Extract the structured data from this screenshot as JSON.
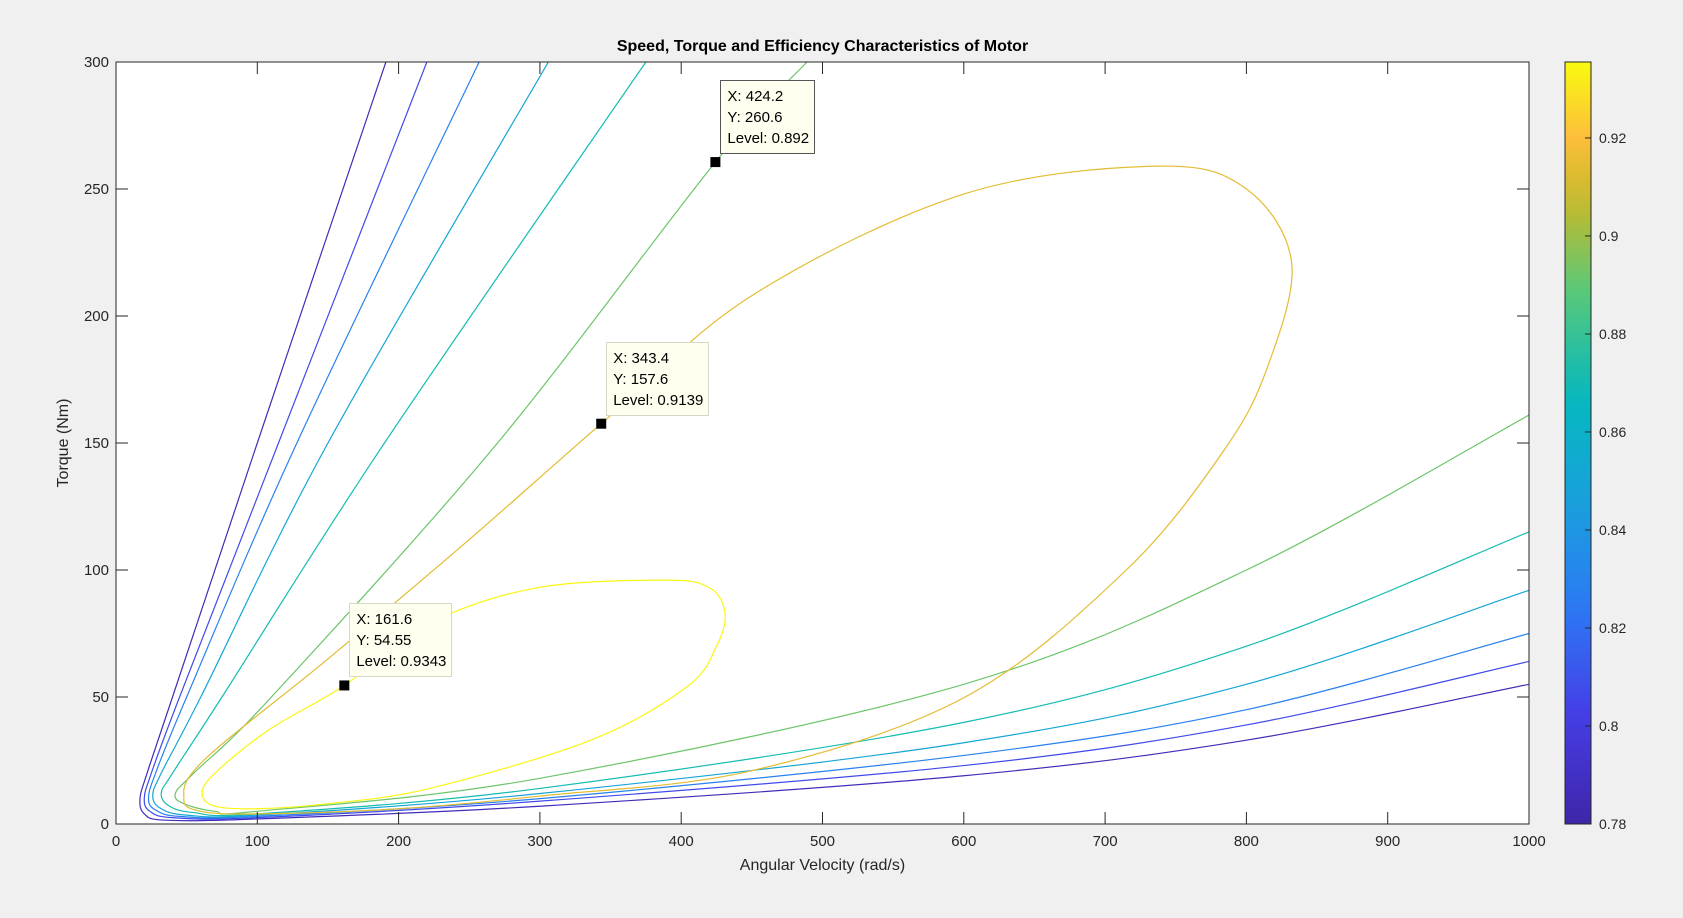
{
  "chart_data": {
    "type": "contour",
    "title": "Speed, Torque and Efficiency Characteristics of Motor",
    "xlabel": "Angular Velocity (rad/s)",
    "ylabel": "Torque (Nm)",
    "xlim": [
      0,
      1000
    ],
    "ylim": [
      0,
      300
    ],
    "xticks": [
      "0",
      "100",
      "200",
      "300",
      "400",
      "500",
      "600",
      "700",
      "800",
      "900",
      "1000"
    ],
    "yticks": [
      "0",
      "50",
      "100",
      "150",
      "200",
      "250",
      "300"
    ],
    "grid": false,
    "colormap": "parula",
    "colorbar": {
      "range": [
        0.78,
        0.9355
      ],
      "ticks": [
        "0.78",
        "0.8",
        "0.82",
        "0.84",
        "0.86",
        "0.88",
        "0.9",
        "0.92"
      ],
      "placement": "right"
    },
    "contours": [
      {
        "level": 0.7855,
        "points": [
          [
            191,
            300
          ],
          [
            100,
            150
          ],
          [
            40,
            50
          ],
          [
            22,
            20
          ],
          [
            17,
            10
          ],
          [
            20,
            4
          ],
          [
            35,
            1.5
          ],
          [
            100,
            2
          ],
          [
            300,
            7
          ],
          [
            600,
            19
          ],
          [
            800,
            33
          ],
          [
            1000,
            55
          ]
        ]
      },
      {
        "level": 0.807,
        "points": [
          [
            220,
            300
          ],
          [
            115,
            150
          ],
          [
            45,
            50
          ],
          [
            25,
            20
          ],
          [
            20,
            10
          ],
          [
            24,
            5
          ],
          [
            40,
            2.5
          ],
          [
            100,
            2.5
          ],
          [
            300,
            9
          ],
          [
            600,
            23
          ],
          [
            800,
            39
          ],
          [
            1000,
            64
          ]
        ]
      },
      {
        "level": 0.8285,
        "points": [
          [
            257,
            300
          ],
          [
            128,
            150
          ],
          [
            50,
            50
          ],
          [
            28,
            20
          ],
          [
            23,
            10
          ],
          [
            28,
            5.5
          ],
          [
            45,
            3
          ],
          [
            100,
            3
          ],
          [
            300,
            10
          ],
          [
            600,
            27
          ],
          [
            800,
            45
          ],
          [
            1000,
            75
          ]
        ]
      },
      {
        "level": 0.85,
        "points": [
          [
            306,
            300
          ],
          [
            150,
            150
          ],
          [
            60,
            50
          ],
          [
            32,
            20
          ],
          [
            26,
            11
          ],
          [
            32,
            6
          ],
          [
            50,
            3.5
          ],
          [
            100,
            3.5
          ],
          [
            300,
            12
          ],
          [
            600,
            32
          ],
          [
            800,
            55
          ],
          [
            1000,
            92
          ]
        ]
      },
      {
        "level": 0.871,
        "points": [
          [
            375,
            300
          ],
          [
            190,
            150
          ],
          [
            75,
            50
          ],
          [
            40,
            20
          ],
          [
            32,
            12
          ],
          [
            38,
            7
          ],
          [
            55,
            4.5
          ],
          [
            100,
            4
          ],
          [
            300,
            14
          ],
          [
            600,
            40
          ],
          [
            800,
            70
          ],
          [
            1000,
            115
          ]
        ]
      },
      {
        "level": 0.892,
        "points": [
          [
            489,
            300
          ],
          [
            424.2,
            260.6
          ],
          [
            270,
            150
          ],
          [
            110,
            50
          ],
          [
            55,
            20
          ],
          [
            42,
            12
          ],
          [
            48,
            8
          ],
          [
            70,
            5
          ],
          [
            100,
            5
          ],
          [
            300,
            18
          ],
          [
            600,
            55
          ],
          [
            800,
            100
          ],
          [
            1000,
            161
          ]
        ]
      },
      {
        "level": 0.9139,
        "closed": true,
        "points": [
          [
            48,
            10
          ],
          [
            62,
            25
          ],
          [
            150,
            65
          ],
          [
            250,
            112
          ],
          [
            343.4,
            157.6
          ],
          [
            450,
            208
          ],
          [
            600,
            248
          ],
          [
            738,
            259
          ],
          [
            800,
            250
          ],
          [
            832,
            221
          ],
          [
            815,
            180
          ],
          [
            784,
            147
          ],
          [
            715,
            100
          ],
          [
            601,
            50
          ],
          [
            450,
            21
          ],
          [
            300,
            11
          ],
          [
            200,
            6
          ],
          [
            100,
            4
          ],
          [
            60,
            5
          ]
        ]
      },
      {
        "level": 0.9343,
        "closed": true,
        "points": [
          [
            61,
            12
          ],
          [
            70,
            20
          ],
          [
            108,
            37
          ],
          [
            161.6,
            54.55
          ],
          [
            222,
            79
          ],
          [
            298,
            93
          ],
          [
            389,
            96
          ],
          [
            420,
            93
          ],
          [
            431,
            83
          ],
          [
            425,
            70
          ],
          [
            404,
            54
          ],
          [
            336,
            33
          ],
          [
            222,
            14
          ],
          [
            150,
            8
          ],
          [
            100,
            6
          ],
          [
            70,
            7
          ]
        ]
      }
    ],
    "datatips": [
      {
        "x": 424.2,
        "y": 260.6,
        "lines": [
          "X: 424.2",
          "Y: 260.6",
          "Level: 0.892"
        ],
        "selected": true
      },
      {
        "x": 343.4,
        "y": 157.6,
        "lines": [
          "X: 343.4",
          "Y: 157.6",
          "Level: 0.9139"
        ]
      },
      {
        "x": 161.6,
        "y": 54.55,
        "lines": [
          "X: 161.6",
          "Y: 54.55",
          "Level: 0.9343"
        ]
      }
    ]
  }
}
